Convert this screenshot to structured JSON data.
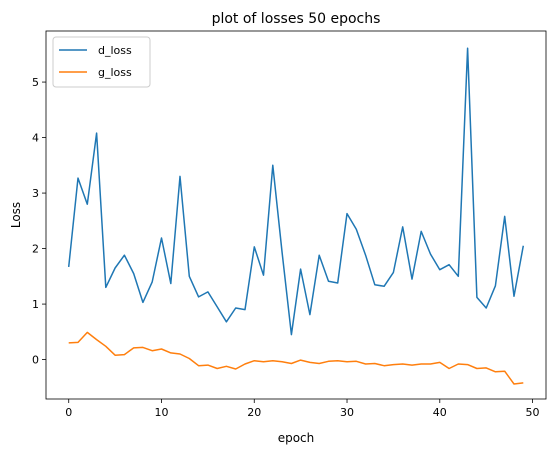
{
  "chart_data": {
    "type": "line",
    "title": "plot of losses 50 epochs",
    "xlabel": "epoch",
    "ylabel": "Loss",
    "xlim": [
      -2.45,
      51.45
    ],
    "ylim": [
      -0.71,
      5.92
    ],
    "xticks": [
      0,
      10,
      20,
      30,
      40,
      50
    ],
    "yticks": [
      0,
      1,
      2,
      3,
      4,
      5
    ],
    "grid": false,
    "legend_position": "top-left",
    "x": [
      0,
      1,
      2,
      3,
      4,
      5,
      6,
      7,
      8,
      9,
      10,
      11,
      12,
      13,
      14,
      15,
      16,
      17,
      18,
      19,
      20,
      21,
      22,
      23,
      24,
      25,
      26,
      27,
      28,
      29,
      30,
      31,
      32,
      33,
      34,
      35,
      36,
      37,
      38,
      39,
      40,
      41,
      42,
      43,
      44,
      45,
      46,
      47,
      48,
      49
    ],
    "series": [
      {
        "name": "d_loss",
        "color": "#1f77b4",
        "values": [
          1.67,
          3.27,
          2.8,
          4.08,
          1.3,
          1.65,
          1.88,
          1.55,
          1.03,
          1.4,
          2.19,
          1.37,
          3.3,
          1.5,
          1.13,
          1.22,
          0.95,
          0.68,
          0.93,
          0.9,
          2.03,
          1.52,
          3.5,
          1.93,
          0.45,
          1.63,
          0.81,
          1.88,
          1.41,
          1.38,
          2.63,
          2.35,
          1.88,
          1.35,
          1.32,
          1.57,
          2.39,
          1.45,
          2.31,
          1.9,
          1.62,
          1.71,
          1.5,
          5.61,
          1.12,
          0.93,
          1.33,
          2.58,
          1.14,
          2.05
        ]
      },
      {
        "name": "g_loss",
        "color": "#ff7f0e",
        "values": [
          0.3,
          0.31,
          0.49,
          0.36,
          0.24,
          0.08,
          0.09,
          0.21,
          0.22,
          0.16,
          0.19,
          0.12,
          0.1,
          0.02,
          -0.11,
          -0.1,
          -0.16,
          -0.12,
          -0.17,
          -0.08,
          -0.02,
          -0.04,
          -0.02,
          -0.04,
          -0.07,
          -0.01,
          -0.05,
          -0.07,
          -0.03,
          -0.02,
          -0.04,
          -0.03,
          -0.08,
          -0.07,
          -0.11,
          -0.09,
          -0.08,
          -0.1,
          -0.08,
          -0.08,
          -0.05,
          -0.16,
          -0.08,
          -0.09,
          -0.16,
          -0.15,
          -0.22,
          -0.21,
          -0.44,
          -0.42
        ]
      }
    ]
  }
}
